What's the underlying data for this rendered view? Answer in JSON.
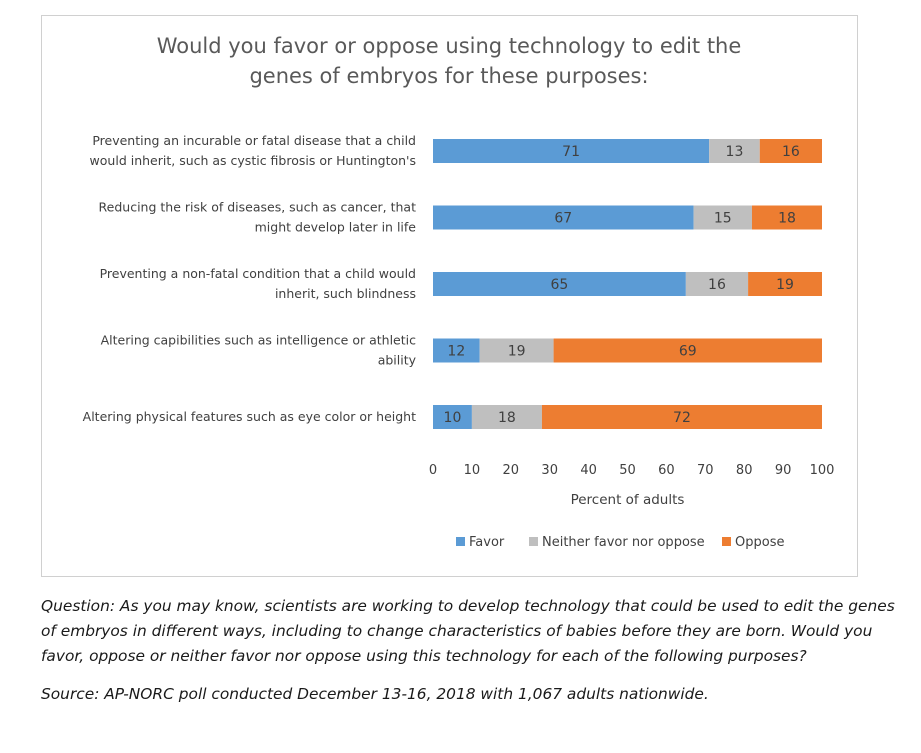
{
  "chart_data": {
    "type": "bar",
    "orientation": "horizontal",
    "stacked": true,
    "title_lines": [
      "Would you favor or oppose using technology to edit the",
      "genes of embryos for these purposes:"
    ],
    "categories": [
      [
        "Preventing an incurable or fatal disease that a child",
        "would inherit, such as cystic fibrosis or Huntington's"
      ],
      [
        "Reducing the risk of diseases, such as cancer, that",
        "might develop later in life"
      ],
      [
        "Preventing a non-fatal condition that a child would",
        "inherit, such blindness"
      ],
      [
        "Altering capibilities such as intelligence or athletic",
        "ability"
      ],
      [
        "Altering physical features such as eye color or height"
      ]
    ],
    "series": [
      {
        "name": "Favor",
        "color": "#5b9bd5",
        "label_color": "#404040",
        "values": [
          71,
          67,
          65,
          12,
          10
        ]
      },
      {
        "name": "Neither favor nor oppose",
        "color": "#bfbfbf",
        "label_color": "#404040",
        "values": [
          13,
          15,
          16,
          19,
          18
        ]
      },
      {
        "name": "Oppose",
        "color": "#ed7d31",
        "label_color": "#404040",
        "values": [
          16,
          18,
          19,
          69,
          72
        ]
      }
    ],
    "xlabel": "Percent of adults",
    "xlim": [
      0,
      100
    ],
    "xticks": [
      "0",
      "10",
      "20",
      "30",
      "40",
      "50",
      "60",
      "70",
      "80",
      "90",
      "100"
    ],
    "grid": false,
    "legend_position": "bottom"
  },
  "notes": {
    "question": "Question: As you may know, scientists are working to develop technology that could be used to edit the genes of embryos in different ways, including to change characteristics of babies before they are born. Would you favor, oppose or neither favor nor oppose using this technology for each of the following purposes?",
    "source": "Source: AP-NORC poll conducted December 13-16, 2018 with 1,067 adults nationwide."
  }
}
